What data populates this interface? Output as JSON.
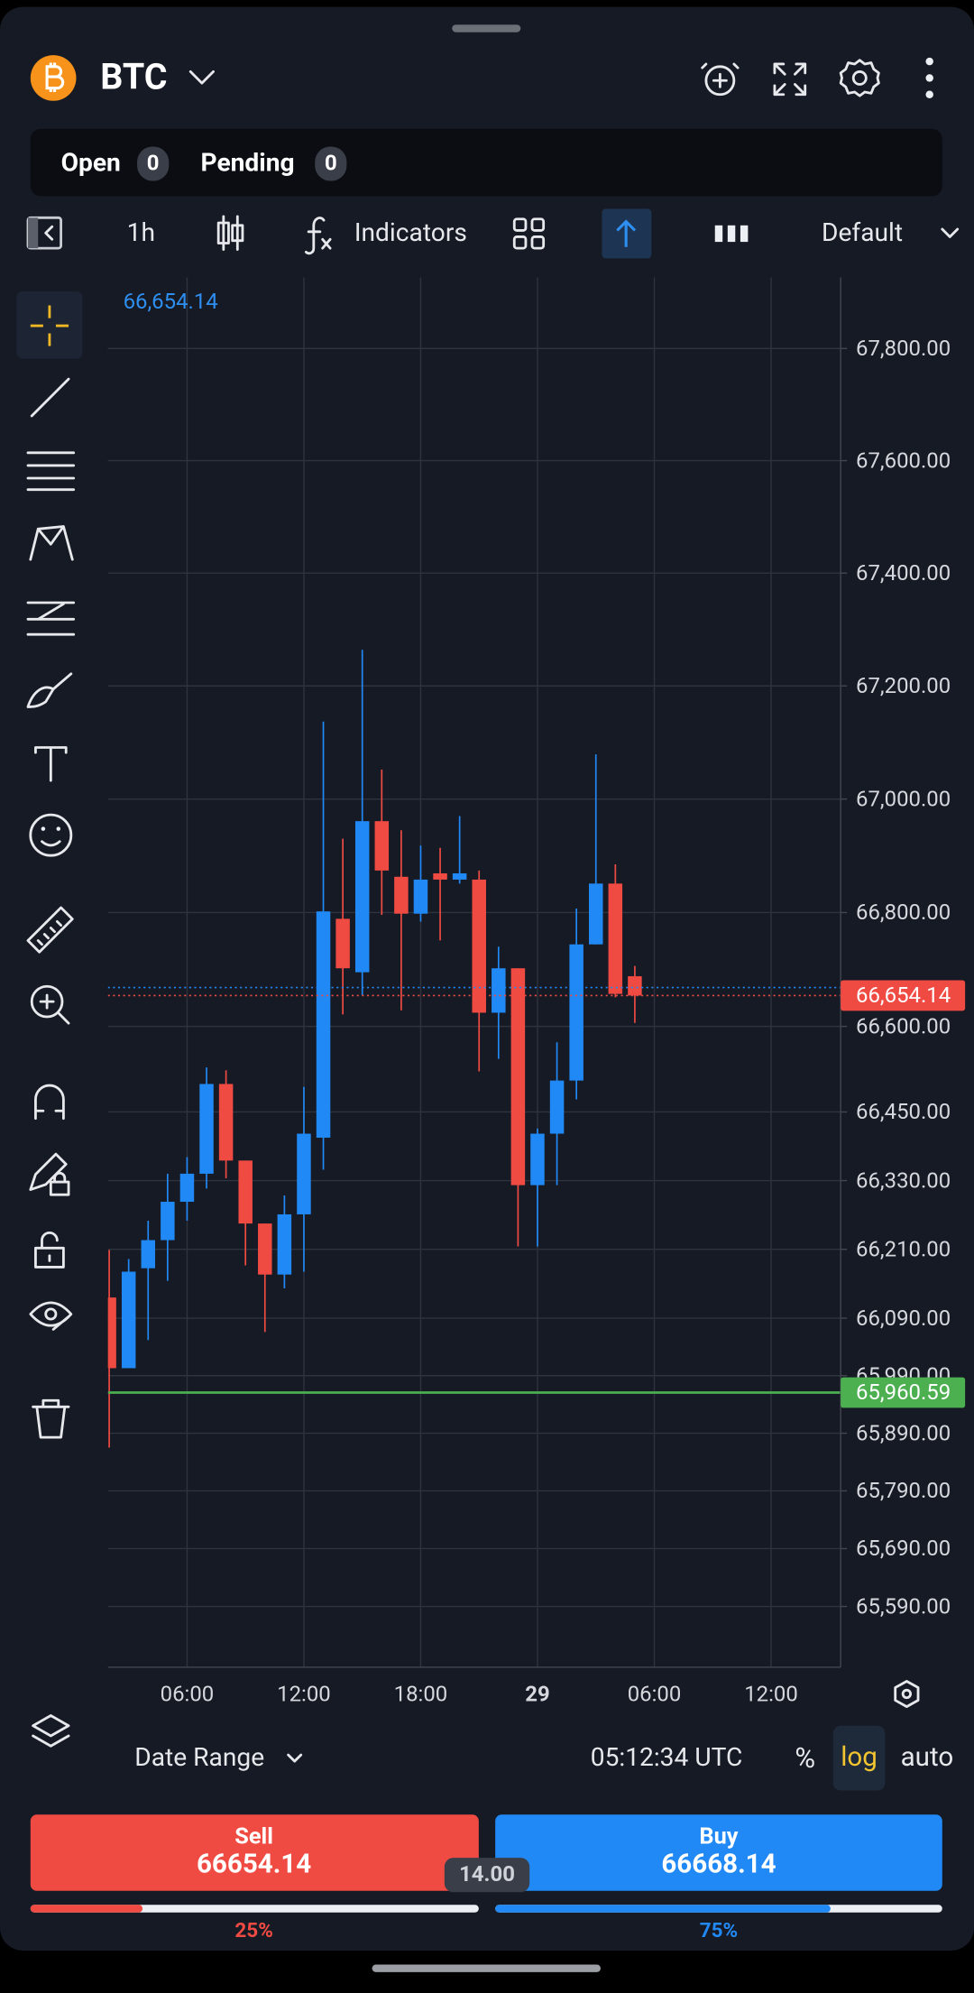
{
  "header": {
    "symbol": "BTC"
  },
  "positions": {
    "open_label": "Open",
    "open_count": "0",
    "pending_label": "Pending",
    "pending_count": "0"
  },
  "toolbar": {
    "interval": "1h",
    "indicators": "Indicators",
    "layout": "Default"
  },
  "footer": {
    "date_range": "Date Range",
    "clock": "05:12:34 UTC",
    "percent": "%",
    "log": "log",
    "auto": "auto"
  },
  "trade": {
    "sell": {
      "label": "Sell",
      "price": 66654.14,
      "color": "#ef4b43"
    },
    "buy": {
      "label": "Buy",
      "price": 66668.14,
      "color": "#2189f5"
    },
    "spread": {
      "value": 14,
      "label": "14.00"
    },
    "sentiment": {
      "sell": {
        "value": 25,
        "label": "25%"
      },
      "buy": {
        "value": 75,
        "label": "75%"
      }
    }
  },
  "chart_data": {
    "type": "candlestick",
    "log": true,
    "grid": true,
    "ylim": [
      65485,
      67927
    ],
    "yticks": [
      {
        "value": 67800,
        "label": "67,800.00"
      },
      {
        "value": 67600,
        "label": "67,600.00"
      },
      {
        "value": 67400,
        "label": "67,400.00"
      },
      {
        "value": 67200,
        "label": "67,200.00"
      },
      {
        "value": 67000,
        "label": "67,000.00"
      },
      {
        "value": 66800,
        "label": "66,800.00"
      },
      {
        "value": 66600,
        "label": "66,600.00"
      },
      {
        "value": 66450,
        "label": "66,450.00"
      },
      {
        "value": 66330,
        "label": "66,330.00"
      },
      {
        "value": 66210,
        "label": "66,210.00"
      },
      {
        "value": 66090,
        "label": "66,090.00"
      },
      {
        "value": 65990,
        "label": "65,990.00"
      },
      {
        "value": 65890,
        "label": "65,890.00"
      },
      {
        "value": 65790,
        "label": "65,790.00"
      },
      {
        "value": 65690,
        "label": "65,690.00"
      },
      {
        "value": 65590,
        "label": "65,590.00"
      }
    ],
    "xticks": [
      "06:00",
      "12:00",
      "18:00",
      "29",
      "06:00",
      "12:00"
    ],
    "up_color": "#2189f5",
    "down_color": "#ef4b43",
    "open": [
      66126,
      66003,
      66177,
      66226,
      66293,
      66342,
      66499,
      66365,
      66255,
      66166,
      66271,
      66405,
      66789,
      66695,
      66961,
      66863,
      66798,
      66869,
      66858,
      66858,
      66624,
      66702,
      66322,
      66412,
      66505,
      66744,
      66851,
      66688
    ],
    "high": [
      66209,
      66193,
      66260,
      66342,
      66371,
      66528,
      66523,
      66365,
      66255,
      66304,
      66494,
      67137,
      66930,
      67264,
      67052,
      66945,
      66918,
      66914,
      66970,
      66874,
      66740,
      66702,
      66421,
      66572,
      66807,
      67079,
      66885,
      66706
    ],
    "low": [
      65865,
      66003,
      66052,
      66155,
      66260,
      66316,
      66334,
      66182,
      66066,
      66142,
      66171,
      66349,
      66621,
      66655,
      66796,
      66628,
      66784,
      66751,
      66851,
      66521,
      66543,
      66215,
      66215,
      66322,
      66472,
      66744,
      66651,
      66606
    ],
    "close": [
      66003,
      66171,
      66226,
      66293,
      66342,
      66499,
      66365,
      66255,
      66166,
      66271,
      66412,
      66802,
      66702,
      66961,
      66874,
      66798,
      66858,
      66858,
      66869,
      66624,
      66702,
      66322,
      66412,
      66505,
      66744,
      66851,
      66657,
      66654.14
    ],
    "price_lines": [
      {
        "label": "66,654.14",
        "value": 66654.14,
        "color": "#ef4b43"
      },
      {
        "label": "65,960.59",
        "value": 65960.59,
        "color": "#4caf50"
      }
    ]
  }
}
